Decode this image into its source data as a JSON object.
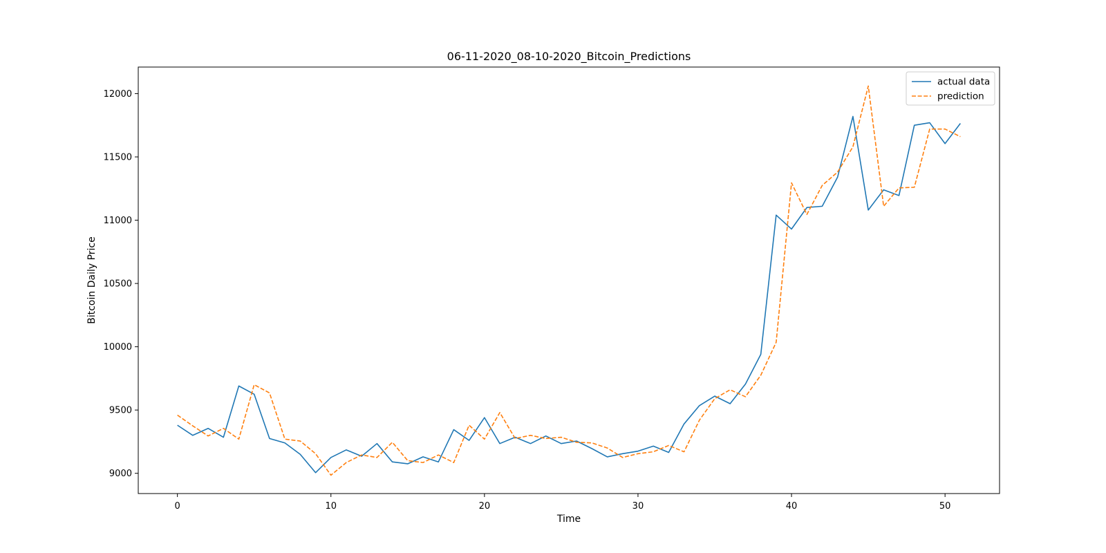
{
  "chart_data": {
    "type": "line",
    "title": "06-11-2020_08-10-2020_Bitcoin_Predictions",
    "xlabel": "Time",
    "ylabel": "Bitcoin Daily Price",
    "xlim": [
      -2.55,
      53.55
    ],
    "ylim": [
      8840,
      12210
    ],
    "xticks": [
      0,
      10,
      20,
      30,
      40,
      50
    ],
    "yticks": [
      9000,
      9500,
      10000,
      10500,
      11000,
      11500,
      12000
    ],
    "grid": false,
    "legend_position": "top-right",
    "x": [
      0,
      1,
      2,
      3,
      4,
      5,
      6,
      7,
      8,
      9,
      10,
      11,
      12,
      13,
      14,
      15,
      16,
      17,
      18,
      19,
      20,
      21,
      22,
      23,
      24,
      25,
      26,
      27,
      28,
      29,
      30,
      31,
      32,
      33,
      34,
      35,
      36,
      37,
      38,
      39,
      40,
      41,
      42,
      43,
      44,
      45,
      46,
      47,
      48,
      49,
      50,
      51
    ],
    "series": [
      {
        "name": "actual data",
        "color": "#1f77b4",
        "style": "solid",
        "values": [
          9380,
          9300,
          9355,
          9285,
          9690,
          9625,
          9275,
          9240,
          9150,
          9005,
          9125,
          9185,
          9135,
          9235,
          9090,
          9075,
          9130,
          9090,
          9345,
          9260,
          9440,
          9235,
          9285,
          9235,
          9295,
          9235,
          9255,
          9195,
          9130,
          9155,
          9175,
          9215,
          9165,
          9390,
          9535,
          9610,
          9550,
          9705,
          9940,
          11040,
          10930,
          11100,
          11110,
          11340,
          11820,
          11080,
          11240,
          11195,
          11750,
          11770,
          11605,
          11765
        ]
      },
      {
        "name": "prediction",
        "color": "#ff7f0e",
        "style": "dashed",
        "values": [
          9460,
          9375,
          9295,
          9355,
          9270,
          9700,
          9635,
          9270,
          9255,
          9155,
          8985,
          9085,
          9145,
          9125,
          9245,
          9100,
          9085,
          9145,
          9085,
          9380,
          9270,
          9480,
          9275,
          9300,
          9275,
          9285,
          9245,
          9240,
          9200,
          9125,
          9155,
          9170,
          9220,
          9170,
          9420,
          9590,
          9660,
          9605,
          9775,
          10035,
          11295,
          11045,
          11275,
          11380,
          11580,
          12060,
          11110,
          11255,
          11260,
          11720,
          11720,
          11660
        ]
      }
    ]
  }
}
